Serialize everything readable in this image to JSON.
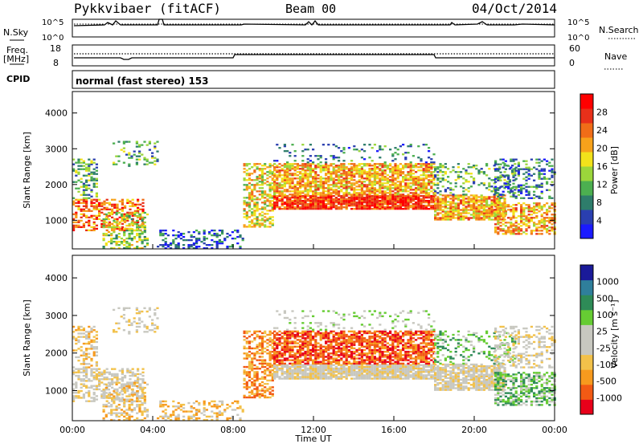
{
  "header": {
    "station": "Pykkvibaer (fitACF)",
    "beam": "Beam 00",
    "date": "04/Oct/2014"
  },
  "top_panels": {
    "nsky_label": "N.Sky",
    "nsky_ticks": [
      "10^5",
      "10^0"
    ],
    "nsearch_label": "N.Search",
    "nsearch_ticks": [
      "10^5",
      "10^0"
    ],
    "freq_label": "Freq.",
    "freq_unit": "[MHz]",
    "freq_ticks": [
      "18",
      "8"
    ],
    "nave_label": "Nave",
    "nave_ticks": [
      "60",
      "0"
    ],
    "cpid_label": "CPID",
    "cpid_text": "normal (fast stereo) 153"
  },
  "colors": {
    "power": [
      "#1a1aff",
      "#2a3fb0",
      "#2e7d6b",
      "#4caf50",
      "#9bd63b",
      "#f2e21b",
      "#f7a21b",
      "#f06d18",
      "#e8301a",
      "#ff0000"
    ],
    "velocity": [
      "#e8001a",
      "#f25a14",
      "#f79a1e",
      "#f2c14a",
      "#c8c8c0",
      "#c8c8c0",
      "#66cc33",
      "#2e8b57",
      "#2f7f9b",
      "#1a1a99"
    ]
  },
  "chart_data": [
    {
      "type": "heatmap",
      "name": "power",
      "x": [
        "00:00",
        "04:00",
        "08:00",
        "12:00",
        "16:00",
        "20:00",
        "00:00"
      ],
      "ylabel": "Slant Range [km]",
      "yticks": [
        1000,
        2000,
        3000,
        4000
      ],
      "ylim": [
        200,
        4600
      ],
      "colorbar_label": "Power [dB]",
      "colorbar_ticks": [
        4,
        8,
        12,
        16,
        20,
        24,
        28
      ]
    },
    {
      "type": "heatmap",
      "name": "velocity",
      "x": [
        "00:00",
        "04:00",
        "08:00",
        "12:00",
        "16:00",
        "20:00",
        "00:00"
      ],
      "xlabel": "Time UT",
      "ylabel": "Slant Range [km]",
      "yticks": [
        1000,
        2000,
        3000,
        4000
      ],
      "ylim": [
        200,
        4600
      ],
      "colorbar_label": "Velocity [m s⁻¹]",
      "colorbar_ticks": [
        1000,
        500,
        100,
        25,
        -25,
        -100,
        -500,
        -1000
      ]
    }
  ]
}
